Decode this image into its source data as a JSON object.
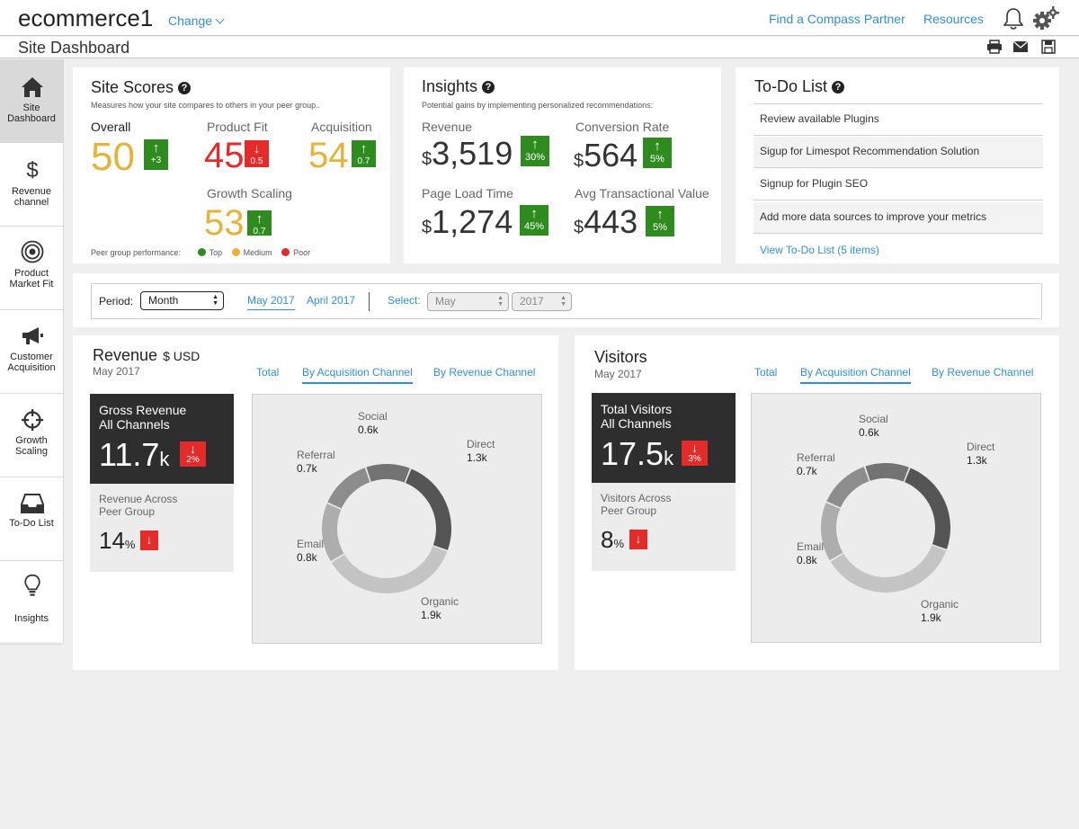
{
  "header": {
    "site_name": "ecommerce1",
    "change_label": "Change",
    "find_partner": "Find a Compass Partner",
    "resources": "Resources",
    "page_title": "Site Dashboard"
  },
  "sidebar": {
    "items": [
      {
        "label": "Site Dashboard",
        "icon": "home-icon"
      },
      {
        "label": "Revenue channel",
        "icon": "dollar-icon"
      },
      {
        "label": "Product Market Fit",
        "icon": "target-icon"
      },
      {
        "label": "Customer Acquisition",
        "icon": "megaphone-icon"
      },
      {
        "label": "Growth Scaling",
        "icon": "crosshair-icon"
      },
      {
        "label": "To-Do List",
        "icon": "inbox-icon"
      },
      {
        "label": "Insights",
        "icon": "lightbulb-icon"
      }
    ]
  },
  "site_scores": {
    "title": "Site Scores",
    "subtitle": "Measures how your site compares to others in your peer group..",
    "overall": {
      "label": "Overall",
      "value": "50",
      "change": "+3"
    },
    "product_fit": {
      "label": "Product Fit",
      "value": "45",
      "change": "0.5"
    },
    "acquisition": {
      "label": "Acquisition",
      "value": "54",
      "change": "0.7"
    },
    "growth_scaling": {
      "label": "Growth Scaling",
      "value": "53",
      "change": "0.7"
    },
    "legend": {
      "label": "Peer group performance:",
      "top": "Top",
      "medium": "Medium",
      "poor": "Poor"
    },
    "colors": {
      "top": "#2e8b1e",
      "medium": "#e6b33a",
      "poor": "#e52a2a"
    }
  },
  "insights": {
    "title": "Insights",
    "subtitle": "Potential gains by implementing personalized recommendations:",
    "currency": "$",
    "revenue": {
      "label": "Revenue",
      "value": "3,519",
      "change": "30%"
    },
    "conversion": {
      "label": "Conversion Rate",
      "value": "564",
      "change": "5%"
    },
    "load_time": {
      "label": "Page  Load Time",
      "value": "1,274",
      "change": "45%"
    },
    "avg_value": {
      "label": "Avg Transactional Value",
      "value": "443",
      "change": "5%"
    }
  },
  "todo": {
    "title": "To-Do List",
    "items": [
      "Review available Plugins",
      "Sigup for Limespot Recommendation Solution",
      "Signup for Plugin SEO",
      "Add more data sources to improve your metrics"
    ],
    "view_all": "View To-Do List (5 items)"
  },
  "period": {
    "label": "Period:",
    "selected_period": "Month",
    "current": "May 2017",
    "previous": "April 2017",
    "select_label": "Select:",
    "month_value": "May",
    "year_value": "2017"
  },
  "revenue_panel": {
    "title": "Revenue",
    "unit": "$ USD",
    "date": "May 2017",
    "tabs": [
      "Total",
      "By Acquisition Channel",
      "By Revenue Channel"
    ],
    "gross_title_1": "Gross Revenue",
    "gross_title_2": "All Channels",
    "gross_value": "11.7",
    "gross_unit": "k",
    "gross_change": "2%",
    "peer_title_1": "Revenue Across",
    "peer_title_2": "Peer Group",
    "peer_value": "14",
    "peer_unit": "%"
  },
  "visitors_panel": {
    "title": "Visitors",
    "date": "May 2017",
    "tabs": [
      "Total",
      "By Acquisition Channel",
      "By Revenue Channel"
    ],
    "total_title_1": "Total Visitors",
    "total_title_2": "All Channels",
    "total_value": "17.5",
    "total_unit": "k",
    "total_change": "3%",
    "peer_title_1": "Visitors Across",
    "peer_title_2": "Peer Group",
    "peer_value": "8",
    "peer_unit": "%"
  },
  "chart_data": [
    {
      "type": "pie",
      "title": "",
      "categories": [
        "Direct",
        "Organic",
        "Email",
        "Referral",
        "Social"
      ],
      "values": [
        1.3,
        1.9,
        0.8,
        0.7,
        0.6
      ],
      "labels": [
        "1.3k",
        "1.9k",
        "0.8k",
        "0.7k",
        "0.6k"
      ],
      "colors": [
        "#555555",
        "#c4c4c4",
        "#adadad",
        "#8d8d8d",
        "#737373"
      ]
    },
    {
      "type": "pie",
      "title": "",
      "categories": [
        "Direct",
        "Organic",
        "Email",
        "Referral",
        "Social"
      ],
      "values": [
        1.3,
        1.9,
        0.8,
        0.7,
        0.6
      ],
      "labels": [
        "1.3k",
        "1.9k",
        "0.8k",
        "0.7k",
        "0.6k"
      ],
      "colors": [
        "#555555",
        "#c4c4c4",
        "#adadad",
        "#8d8d8d",
        "#737373"
      ]
    }
  ]
}
